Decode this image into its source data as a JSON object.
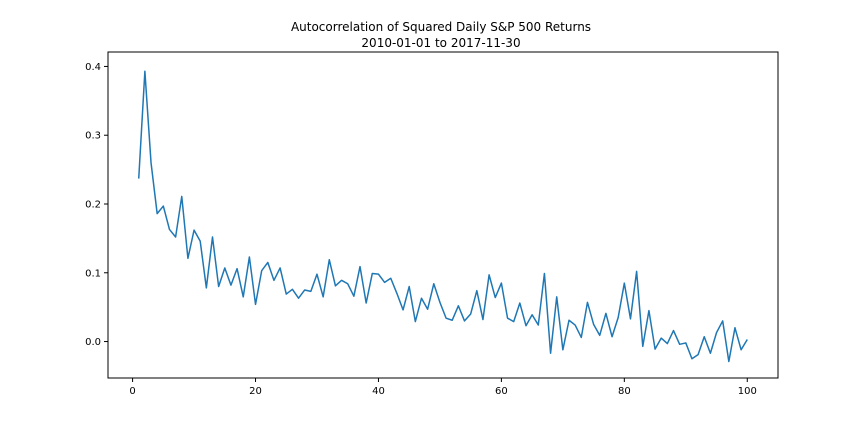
{
  "chart_data": {
    "type": "line",
    "title": "Autocorrelation of Squared Daily S&P 500 Returns",
    "subtitle": "2010-01-01 to 2017-11-30",
    "xlabel": "",
    "ylabel": "",
    "xlim": [
      -4,
      105
    ],
    "ylim": [
      -0.053,
      0.421
    ],
    "xticks": [
      0,
      20,
      40,
      60,
      80,
      100
    ],
    "yticks": [
      0.0,
      0.1,
      0.2,
      0.3,
      0.4
    ],
    "ytick_labels": [
      "0.0",
      "0.1",
      "0.2",
      "0.3",
      "0.4"
    ],
    "grid": false,
    "line_color": "#1f77b4",
    "series": [
      {
        "x": [
          1,
          2,
          3,
          4,
          5,
          6,
          7,
          8,
          9,
          10,
          11,
          12,
          13,
          14,
          15,
          16,
          17,
          18,
          19,
          20,
          21,
          22,
          23,
          24,
          25,
          26,
          27,
          28,
          29,
          30,
          31,
          32,
          33,
          34,
          35,
          36,
          37,
          38,
          39,
          40,
          41,
          42,
          43,
          44,
          45,
          46,
          47,
          48,
          49,
          50,
          51,
          52,
          53,
          54,
          55,
          56,
          57,
          58,
          59,
          60,
          61,
          62,
          63,
          64,
          65,
          66,
          67,
          68,
          69,
          70,
          71,
          72,
          73,
          74,
          75,
          76,
          77,
          78,
          79,
          80,
          81,
          82,
          83,
          84,
          85,
          86,
          87,
          88,
          89,
          90,
          91,
          92,
          93,
          94,
          95,
          96,
          97,
          98,
          99,
          100
        ],
        "values": [
          0.237,
          0.393,
          0.26,
          0.186,
          0.197,
          0.163,
          0.152,
          0.211,
          0.121,
          0.162,
          0.146,
          0.078,
          0.152,
          0.08,
          0.107,
          0.082,
          0.106,
          0.065,
          0.123,
          0.054,
          0.103,
          0.115,
          0.089,
          0.107,
          0.069,
          0.076,
          0.063,
          0.075,
          0.073,
          0.098,
          0.065,
          0.119,
          0.081,
          0.089,
          0.084,
          0.066,
          0.109,
          0.056,
          0.099,
          0.098,
          0.086,
          0.092,
          0.07,
          0.046,
          0.08,
          0.029,
          0.063,
          0.047,
          0.084,
          0.057,
          0.034,
          0.031,
          0.052,
          0.03,
          0.04,
          0.074,
          0.032,
          0.097,
          0.064,
          0.085,
          0.034,
          0.029,
          0.056,
          0.023,
          0.039,
          0.024,
          0.099,
          -0.017,
          0.065,
          -0.012,
          0.031,
          0.024,
          0.006,
          0.057,
          0.025,
          0.009,
          0.041,
          0.007,
          0.035,
          0.085,
          0.033,
          0.102,
          -0.007,
          0.045,
          -0.011,
          0.005,
          -0.003,
          0.016,
          -0.004,
          -0.002,
          -0.025,
          -0.019,
          0.007,
          -0.017,
          0.013,
          0.03,
          -0.029,
          0.02,
          -0.012,
          0.003
        ]
      }
    ]
  }
}
